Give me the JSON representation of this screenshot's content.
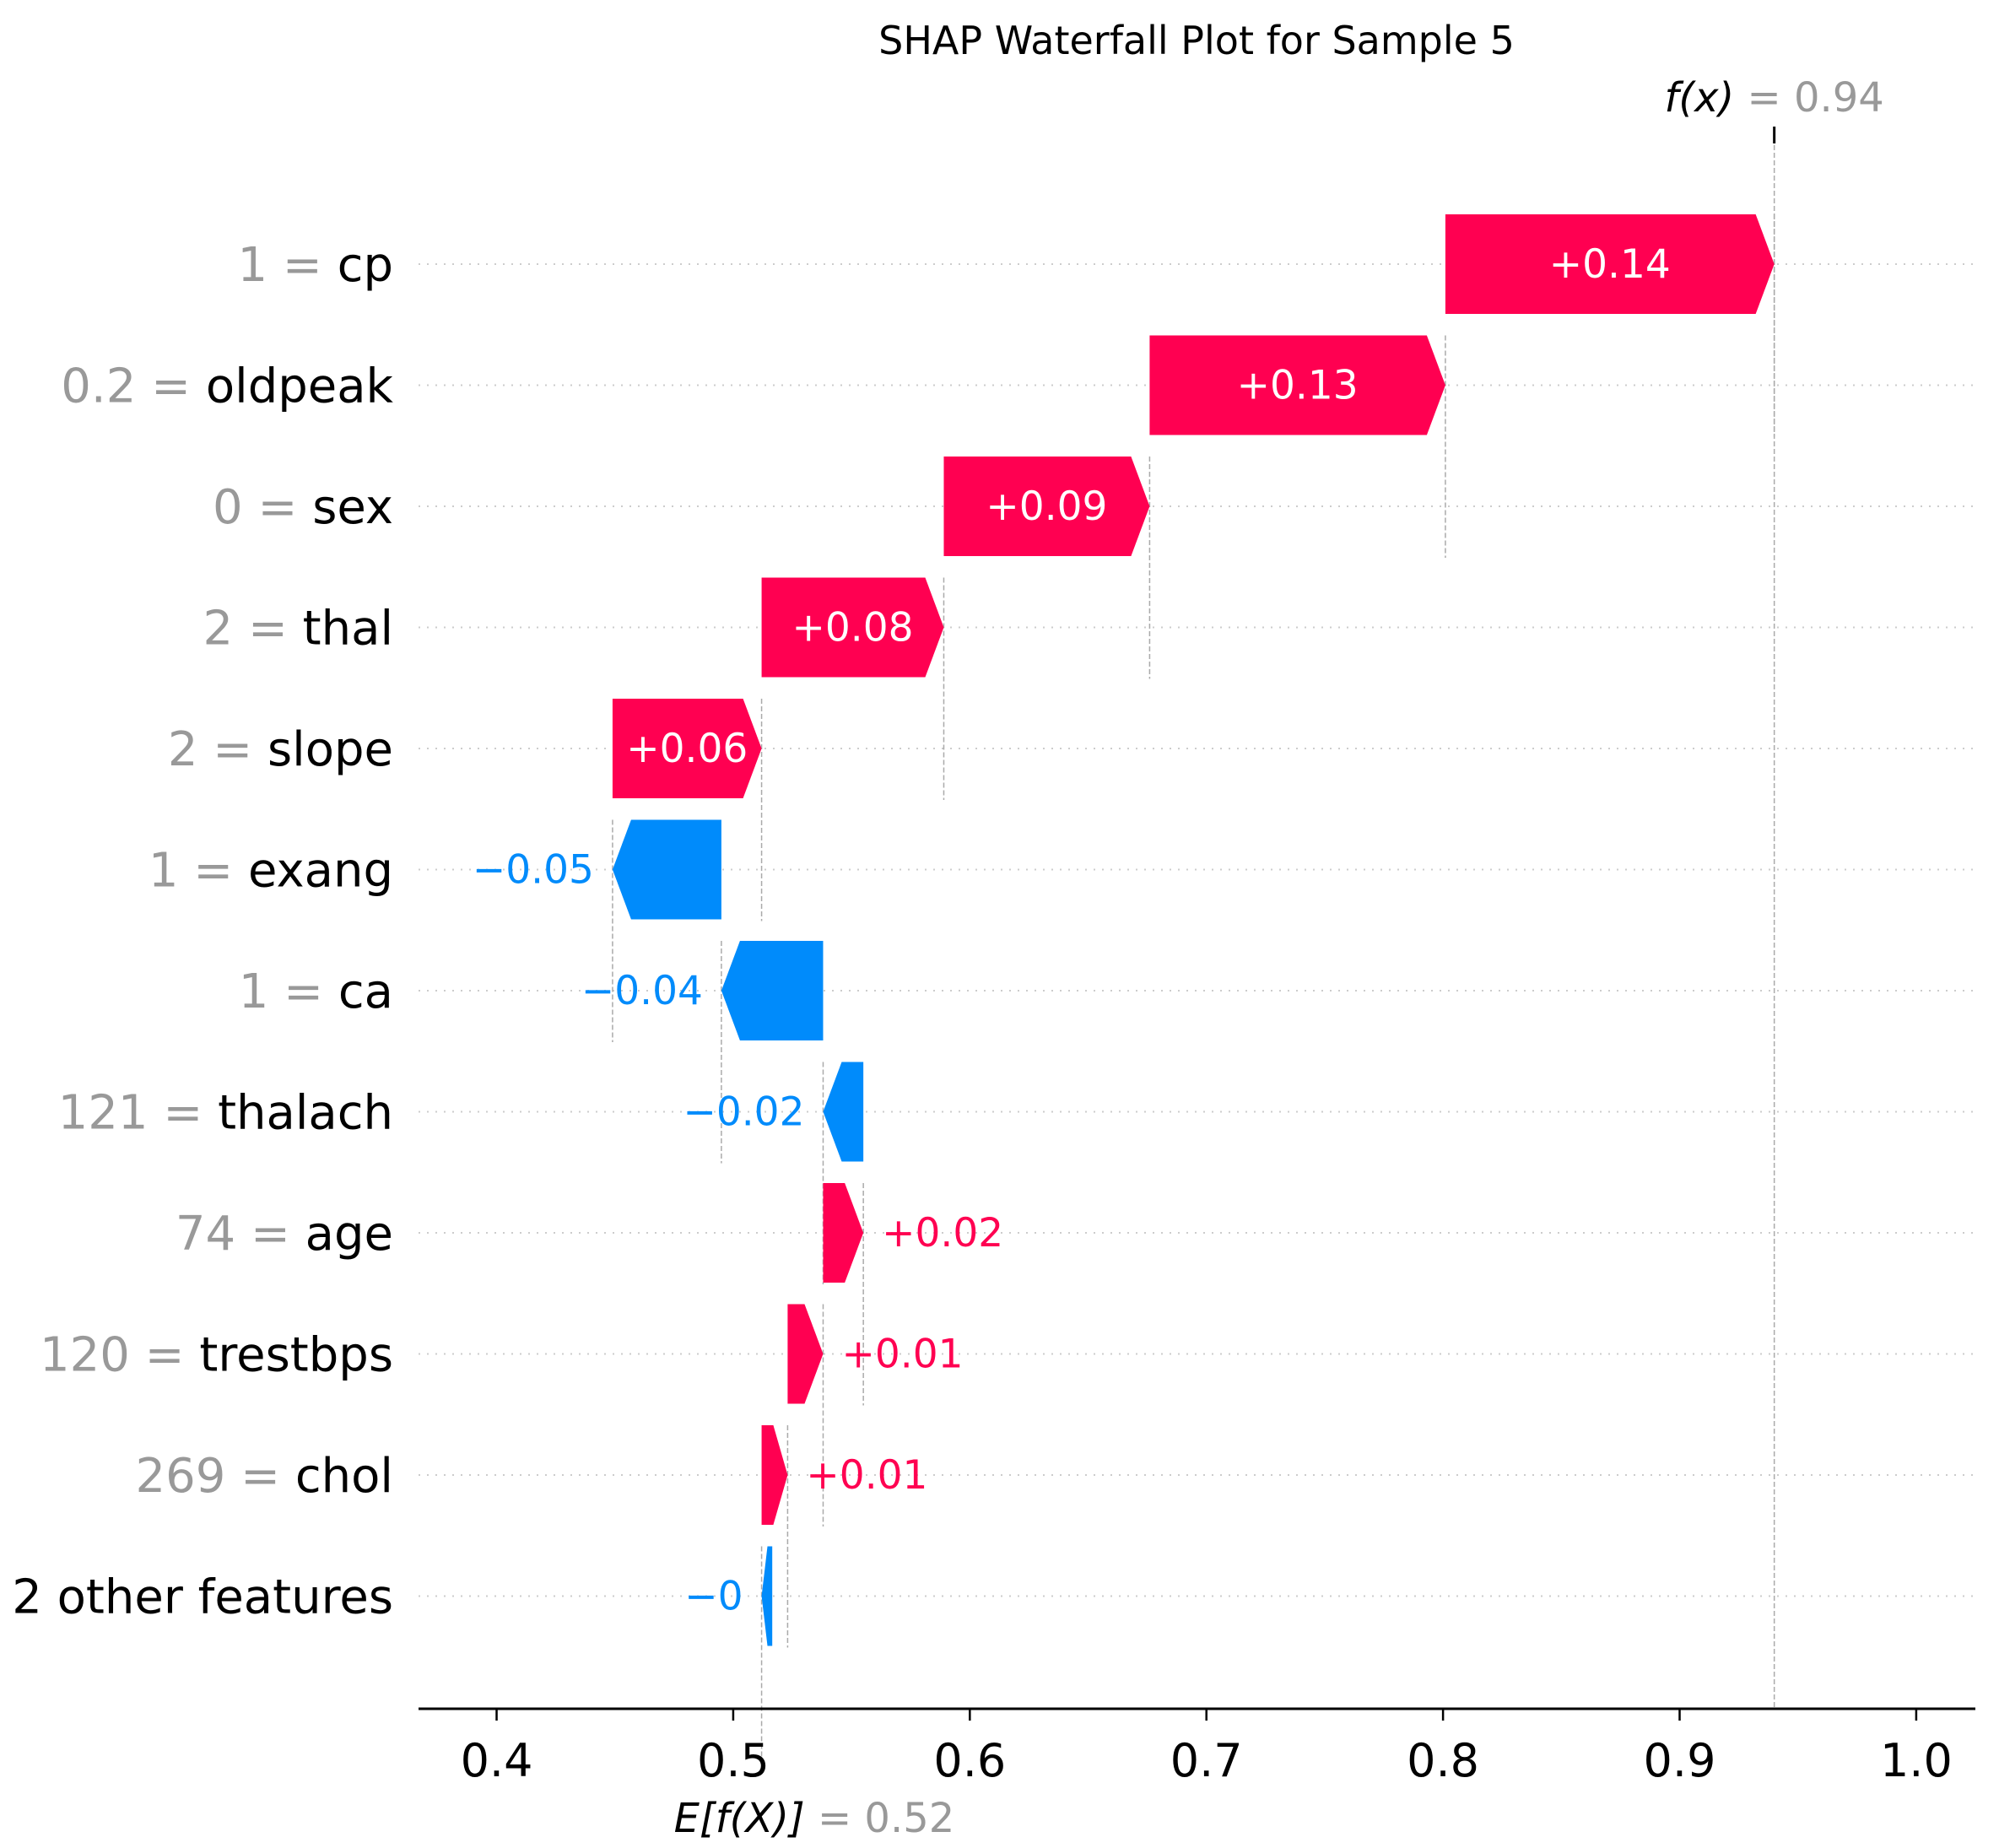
{
  "chart_data": {
    "type": "waterfall",
    "title": "SHAP Waterfall Plot for Sample 5",
    "base_value": 0.52,
    "base_label": "E[f(X)]",
    "base_value_text": "= 0.52",
    "output_value": 0.94,
    "output_label": "f(x)",
    "output_value_text": "= 0.94",
    "xlim": [
      0.367,
      1.025
    ],
    "xticks": [
      {
        "value": 0.4,
        "label": "0.4"
      },
      {
        "value": 0.5,
        "label": "0.5"
      },
      {
        "value": 0.6,
        "label": "0.6"
      },
      {
        "value": 0.7,
        "label": "0.7"
      },
      {
        "value": 0.8,
        "label": "0.8"
      },
      {
        "value": 0.9,
        "label": "0.9"
      },
      {
        "value": 1.0,
        "label": "1.0"
      }
    ],
    "colors": {
      "positive": "#ff0051",
      "negative": "#008bfb",
      "value_gray": "#999999"
    },
    "features": [
      {
        "value_text": "1 =",
        "name": "cp",
        "start": 0.801,
        "end": 0.94,
        "label": "+0.14"
      },
      {
        "value_text": "0.2 =",
        "name": "oldpeak",
        "start": 0.676,
        "end": 0.801,
        "label": "+0.13"
      },
      {
        "value_text": "0 =",
        "name": "sex",
        "start": 0.589,
        "end": 0.676,
        "label": "+0.09"
      },
      {
        "value_text": "2 =",
        "name": "thal",
        "start": 0.512,
        "end": 0.589,
        "label": "+0.08"
      },
      {
        "value_text": "2 =",
        "name": "slope",
        "start": 0.449,
        "end": 0.512,
        "label": "+0.06"
      },
      {
        "value_text": "1 =",
        "name": "exang",
        "start": 0.495,
        "end": 0.449,
        "label": "−0.05"
      },
      {
        "value_text": "1 =",
        "name": "ca",
        "start": 0.538,
        "end": 0.495,
        "label": "−0.04"
      },
      {
        "value_text": "121 =",
        "name": "thalach",
        "start": 0.555,
        "end": 0.538,
        "label": "−0.02"
      },
      {
        "value_text": "74 =",
        "name": "age",
        "start": 0.538,
        "end": 0.555,
        "label": "+0.02"
      },
      {
        "value_text": "120 =",
        "name": "trestbps",
        "start": 0.523,
        "end": 0.538,
        "label": "+0.01"
      },
      {
        "value_text": "269 =",
        "name": "chol",
        "start": 0.512,
        "end": 0.523,
        "label": "+0.01"
      },
      {
        "value_text": "",
        "name": "2 other features",
        "start": 0.5165,
        "end": 0.512,
        "label": "−0"
      }
    ]
  }
}
